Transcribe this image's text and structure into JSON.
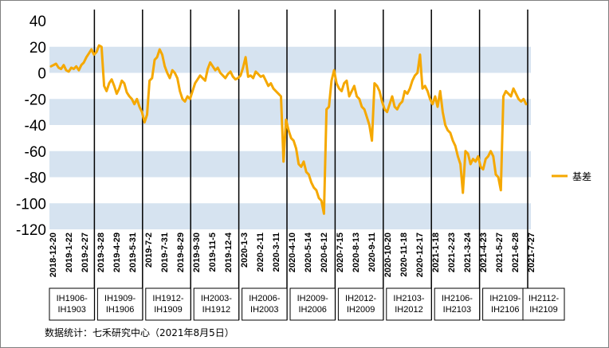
{
  "chart_data": {
    "type": "line",
    "ylim": [
      -120,
      40
    ],
    "yticks": [
      "40",
      "20",
      "0",
      "-20",
      "-40",
      "-60",
      "-80",
      "-100",
      "-120"
    ],
    "xtick_labels": [
      "2018-12-20",
      "2019-1-22",
      "2019-2-27",
      "2019-3-28",
      "2019-4-29",
      "2019-5-31",
      "2019-7-2",
      "2019-7-31",
      "2019-8-29",
      "2019-9-30",
      "2019-11-5",
      "2019-12-4",
      "2020-1-3",
      "2020-2-11",
      "2020-3-11",
      "2020-4-10",
      "2020-5-14",
      "2020-6-12",
      "2020-7-15",
      "2020-8-13",
      "2020-9-11",
      "2020-10-20",
      "2020-11-18",
      "2020-12-17",
      "2021-1-18",
      "2021-2-23",
      "2021-3-24",
      "2021-4-23",
      "2021-5-27",
      "2021-6-28",
      "2021-7-27"
    ],
    "contracts": [
      [
        "IH1906-",
        "IH1903"
      ],
      [
        "IH1909-",
        "IH1906"
      ],
      [
        "IH1912-",
        "IH1909"
      ],
      [
        "IH2003-",
        "IH1912"
      ],
      [
        "IH2006-",
        "IH2003"
      ],
      [
        "IH2009-",
        "IH2006"
      ],
      [
        "IH2012-",
        "IH2009"
      ],
      [
        "IH2103-",
        "IH2012"
      ],
      [
        "IH2106-",
        "IH2103"
      ],
      [
        "IH2109-",
        "IH2106"
      ],
      [
        "IH2112-",
        "IH2109"
      ]
    ],
    "series": [
      {
        "name": "基差",
        "color": "#F5A800",
        "values": [
          5,
          6,
          7,
          4,
          3,
          6,
          2,
          1,
          4,
          3,
          5,
          2,
          6,
          8,
          12,
          15,
          18,
          14,
          16,
          21,
          20,
          -10,
          -14,
          -8,
          -5,
          -10,
          -16,
          -12,
          -6,
          -8,
          -15,
          -18,
          -20,
          -24,
          -20,
          -26,
          -30,
          -38,
          -32,
          -6,
          -4,
          10,
          12,
          18,
          14,
          5,
          0,
          -4,
          2,
          0,
          -4,
          -14,
          -20,
          -22,
          -18,
          -20,
          -14,
          -8,
          -5,
          -2,
          -4,
          -6,
          3,
          8,
          5,
          2,
          4,
          0,
          -2,
          -4,
          -1,
          1,
          -3,
          -5,
          -4,
          -2,
          4,
          12,
          -3,
          -2,
          -4,
          1,
          -1,
          -3,
          -2,
          -6,
          -10,
          -8,
          -12,
          -14,
          -16,
          -18,
          -68,
          -36,
          -44,
          -50,
          -52,
          -58,
          -70,
          -72,
          -68,
          -76,
          -78,
          -84,
          -88,
          -90,
          -96,
          -98,
          -108,
          -28,
          -26,
          -6,
          2,
          -8,
          -12,
          -14,
          -8,
          -6,
          -18,
          -14,
          -10,
          -18,
          -20,
          -26,
          -28,
          -34,
          -40,
          -52,
          -8,
          -10,
          -14,
          -22,
          -28,
          -30,
          -24,
          -18,
          -26,
          -28,
          -24,
          -22,
          -14,
          -16,
          -12,
          -6,
          -2,
          0,
          14,
          -12,
          -10,
          -14,
          -20,
          -24,
          -18,
          -26,
          -14,
          -30,
          -40,
          -44,
          -46,
          -52,
          -56,
          -64,
          -70,
          -92,
          -60,
          -62,
          -70,
          -66,
          -68,
          -64,
          -72,
          -74,
          -66,
          -64,
          -60,
          -64,
          -78,
          -80,
          -90,
          -18,
          -14,
          -16,
          -18,
          -12,
          -16,
          -20,
          -22,
          -20,
          -24
        ]
      }
    ],
    "legend": {
      "position": "right",
      "label": "基差"
    },
    "grid": "horizontal bands"
  },
  "note": "数据统计：七禾研究中心（2021年8月5日）"
}
